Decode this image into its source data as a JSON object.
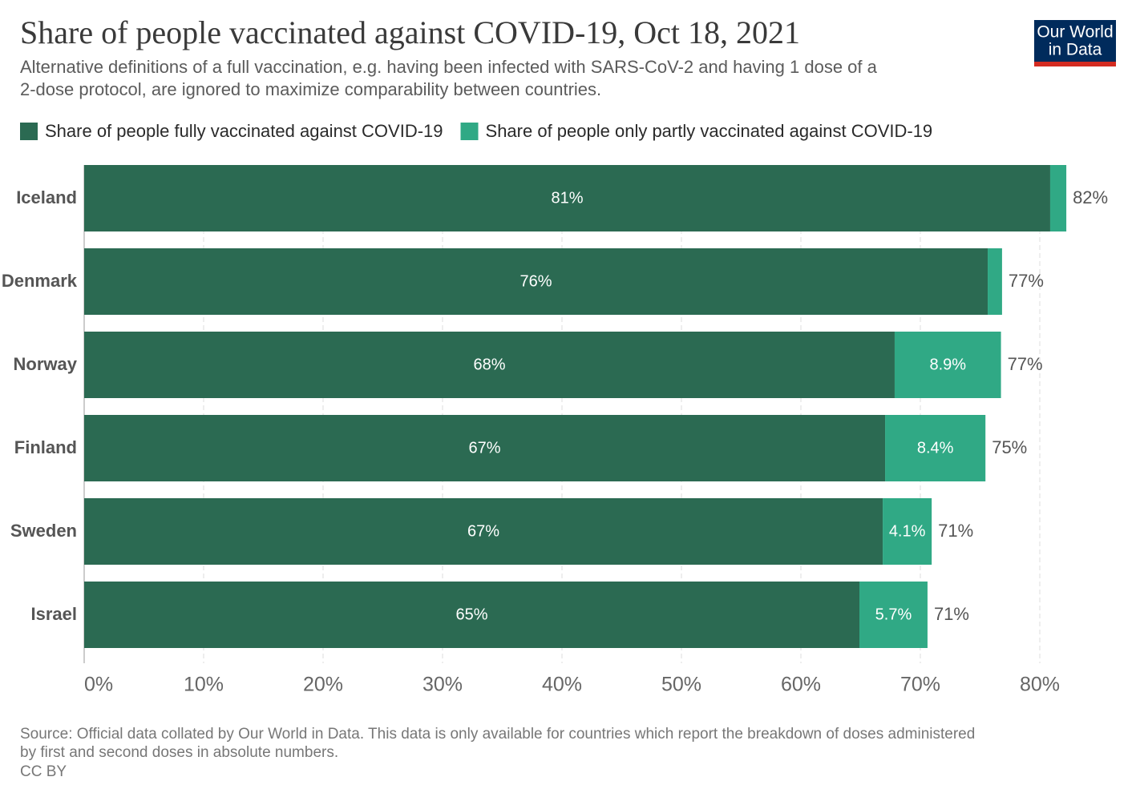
{
  "chart_data": {
    "type": "stacked-barh",
    "title": "Share of people vaccinated against COVID-19, Oct 18, 2021",
    "subtitle": [
      "Alternative definitions of a full vaccination, e.g. having been infected with SARS-CoV-2 and having 1 dose of a",
      "2-dose protocol, are ignored to maximize comparability between countries."
    ],
    "logo": [
      "Our World",
      "in Data"
    ],
    "categories": [
      "Iceland",
      "Denmark",
      "Norway",
      "Finland",
      "Sweden",
      "Israel"
    ],
    "series": [
      {
        "name": "Share of people fully vaccinated against COVID-19",
        "color": "#2b6a52",
        "values": [
          80.87,
          75.64,
          67.85,
          67.05,
          66.85,
          64.9
        ],
        "value_labels": [
          "81%",
          "76%",
          "68%",
          "67%",
          "67%",
          "65%"
        ]
      },
      {
        "name": "Share of people only partly vaccinated against COVID-19",
        "color": "#30a985",
        "values": [
          1.35,
          1.2,
          8.9,
          8.4,
          4.1,
          5.7
        ],
        "value_labels": [
          null,
          null,
          "8.9%",
          "8.4%",
          "4.1%",
          "5.7%"
        ]
      }
    ],
    "total_labels": [
      "82%",
      "77%",
      "77%",
      "75%",
      "71%",
      "71%"
    ],
    "xlim": [
      0,
      80
    ],
    "xticks": [
      {
        "value": 0,
        "label": "0%"
      },
      {
        "value": 10,
        "label": "10%"
      },
      {
        "value": 20,
        "label": "20%"
      },
      {
        "value": 30,
        "label": "30%"
      },
      {
        "value": 40,
        "label": "40%"
      },
      {
        "value": 50,
        "label": "50%"
      },
      {
        "value": 60,
        "label": "60%"
      },
      {
        "value": 70,
        "label": "70%"
      },
      {
        "value": 80,
        "label": "80%"
      }
    ],
    "grid": true,
    "source": [
      "Source: Official data collated by Our World in Data. This data is only available for countries which report the breakdown of doses administered",
      "by first and second doses in absolute numbers."
    ],
    "license": "CC BY"
  }
}
